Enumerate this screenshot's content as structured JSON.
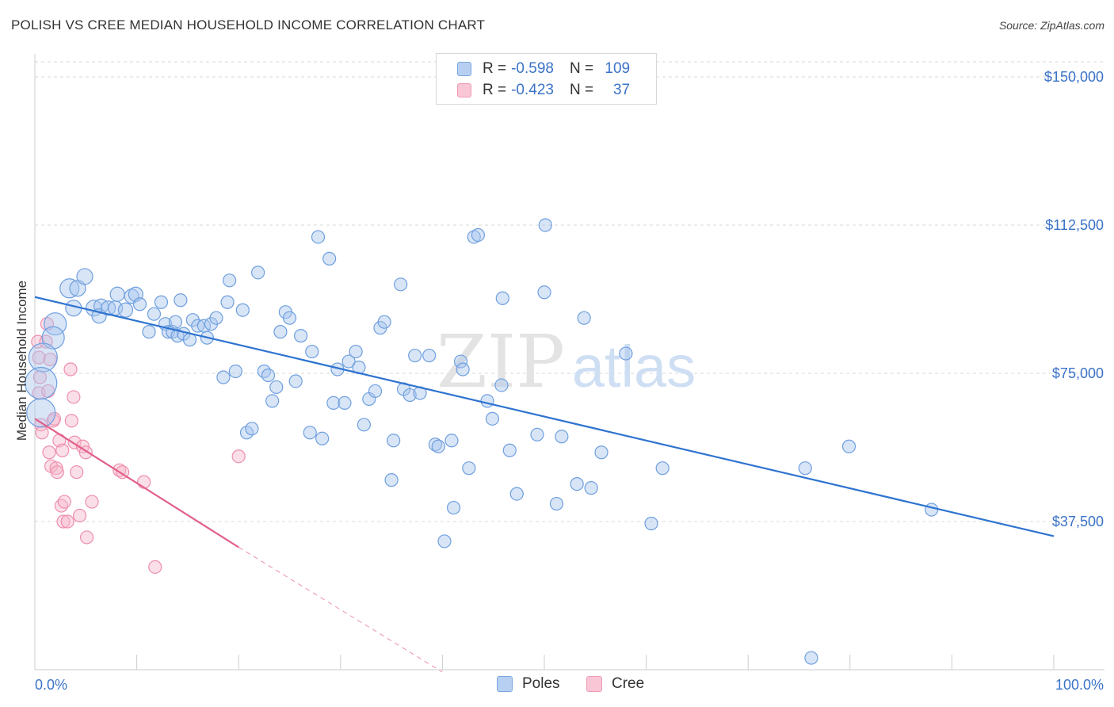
{
  "title": "POLISH VS CREE MEDIAN HOUSEHOLD INCOME CORRELATION CHART",
  "source": "Source: ZipAtlas.com",
  "watermark": {
    "zip": "ZIP",
    "atlas": "atlas"
  },
  "legend_top": [
    {
      "r_label": "R =",
      "r_value": "-0.598",
      "n_label": "N =",
      "n_value": "109"
    },
    {
      "r_label": "R =",
      "r_value": "-0.423",
      "n_label": "N =",
      "n_value": "37"
    }
  ],
  "legend_bottom": [
    "Poles",
    "Cree"
  ],
  "colors": {
    "blue_fill": "#a9c6ee",
    "blue_stroke": "#6e9fdf",
    "blue_line": "#2f74d0",
    "pink_fill": "#f6b8cb",
    "pink_stroke": "#ee8eac",
    "pink_line": "#e2608a",
    "axis_text": "#3b73c8",
    "grid": "#d9d9d9"
  },
  "chart_data": {
    "type": "scatter",
    "title": "POLISH VS CREE MEDIAN HOUSEHOLD INCOME CORRELATION CHART",
    "xlabel": "",
    "ylabel": "Median Household Income",
    "xlim": [
      0,
      100
    ],
    "ylim": [
      0,
      155000
    ],
    "x_tick_labels": [
      "0.0%",
      "100.0%"
    ],
    "y_ticks": [
      37500,
      75000,
      112500,
      150000
    ],
    "y_tick_labels": [
      "$37,500",
      "$75,000",
      "$112,500",
      "$150,000"
    ],
    "series": [
      {
        "name": "Poles",
        "color": "#6e9fdf",
        "trend": {
          "x": [
            0,
            100
          ],
          "y": [
            94300,
            33800
          ]
        },
        "points": [
          {
            "x": 2.0,
            "y": 87500,
            "s": 14
          },
          {
            "x": 1.8,
            "y": 84000,
            "s": 14
          },
          {
            "x": 0.8,
            "y": 79000,
            "s": 18
          },
          {
            "x": 0.6,
            "y": 72500,
            "s": 20
          },
          {
            "x": 0.6,
            "y": 65000,
            "s": 18
          },
          {
            "x": 3.4,
            "y": 96500,
            "s": 12
          },
          {
            "x": 4.2,
            "y": 96500,
            "s": 10
          },
          {
            "x": 4.9,
            "y": 99500,
            "s": 10
          },
          {
            "x": 3.8,
            "y": 91500,
            "s": 10
          },
          {
            "x": 5.8,
            "y": 91500,
            "s": 10
          },
          {
            "x": 6.5,
            "y": 92000,
            "s": 9
          },
          {
            "x": 6.3,
            "y": 89500,
            "s": 9
          },
          {
            "x": 7.2,
            "y": 91500,
            "s": 9
          },
          {
            "x": 7.9,
            "y": 91500,
            "s": 9
          },
          {
            "x": 8.1,
            "y": 95000,
            "s": 9
          },
          {
            "x": 8.9,
            "y": 91000,
            "s": 9
          },
          {
            "x": 9.5,
            "y": 94500,
            "s": 9
          },
          {
            "x": 9.9,
            "y": 95000,
            "s": 9
          },
          {
            "x": 10.3,
            "y": 92500,
            "s": 8
          },
          {
            "x": 11.2,
            "y": 85500,
            "s": 8
          },
          {
            "x": 11.7,
            "y": 90000,
            "s": 8
          },
          {
            "x": 12.4,
            "y": 93000,
            "s": 8
          },
          {
            "x": 12.8,
            "y": 87500,
            "s": 8
          },
          {
            "x": 13.1,
            "y": 85500,
            "s": 8
          },
          {
            "x": 13.5,
            "y": 85500,
            "s": 8
          },
          {
            "x": 13.8,
            "y": 88000,
            "s": 8
          },
          {
            "x": 14.0,
            "y": 84500,
            "s": 8
          },
          {
            "x": 14.3,
            "y": 93500,
            "s": 8
          },
          {
            "x": 14.6,
            "y": 85000,
            "s": 8
          },
          {
            "x": 15.2,
            "y": 83500,
            "s": 8
          },
          {
            "x": 15.5,
            "y": 88500,
            "s": 8
          },
          {
            "x": 16.0,
            "y": 87000,
            "s": 8
          },
          {
            "x": 16.6,
            "y": 87000,
            "s": 8
          },
          {
            "x": 16.9,
            "y": 84000,
            "s": 8
          },
          {
            "x": 17.3,
            "y": 87500,
            "s": 8
          },
          {
            "x": 17.8,
            "y": 89000,
            "s": 8
          },
          {
            "x": 18.5,
            "y": 74000,
            "s": 8
          },
          {
            "x": 18.9,
            "y": 93000,
            "s": 8
          },
          {
            "x": 19.1,
            "y": 98500,
            "s": 8
          },
          {
            "x": 19.7,
            "y": 75500,
            "s": 8
          },
          {
            "x": 20.4,
            "y": 91000,
            "s": 8
          },
          {
            "x": 20.8,
            "y": 60000,
            "s": 8
          },
          {
            "x": 21.3,
            "y": 61000,
            "s": 8
          },
          {
            "x": 21.9,
            "y": 100500,
            "s": 8
          },
          {
            "x": 22.5,
            "y": 75500,
            "s": 8
          },
          {
            "x": 22.9,
            "y": 74500,
            "s": 8
          },
          {
            "x": 23.3,
            "y": 68000,
            "s": 8
          },
          {
            "x": 23.7,
            "y": 71500,
            "s": 8
          },
          {
            "x": 24.1,
            "y": 85500,
            "s": 8
          },
          {
            "x": 24.6,
            "y": 90500,
            "s": 8
          },
          {
            "x": 25.0,
            "y": 89000,
            "s": 8
          },
          {
            "x": 25.6,
            "y": 73000,
            "s": 8
          },
          {
            "x": 26.1,
            "y": 84500,
            "s": 8
          },
          {
            "x": 27.0,
            "y": 60000,
            "s": 8
          },
          {
            "x": 27.2,
            "y": 80500,
            "s": 8
          },
          {
            "x": 27.8,
            "y": 109500,
            "s": 8
          },
          {
            "x": 28.2,
            "y": 58500,
            "s": 8
          },
          {
            "x": 28.9,
            "y": 104000,
            "s": 8
          },
          {
            "x": 29.3,
            "y": 67500,
            "s": 8
          },
          {
            "x": 29.7,
            "y": 76000,
            "s": 8
          },
          {
            "x": 30.4,
            "y": 67500,
            "s": 8
          },
          {
            "x": 30.8,
            "y": 78000,
            "s": 8
          },
          {
            "x": 31.5,
            "y": 80500,
            "s": 8
          },
          {
            "x": 31.8,
            "y": 76500,
            "s": 8
          },
          {
            "x": 32.3,
            "y": 62000,
            "s": 8
          },
          {
            "x": 32.8,
            "y": 68500,
            "s": 8
          },
          {
            "x": 33.4,
            "y": 70500,
            "s": 8
          },
          {
            "x": 33.9,
            "y": 86500,
            "s": 8
          },
          {
            "x": 34.3,
            "y": 88000,
            "s": 8
          },
          {
            "x": 35.2,
            "y": 58000,
            "s": 8
          },
          {
            "x": 35.0,
            "y": 48000,
            "s": 8
          },
          {
            "x": 35.9,
            "y": 97500,
            "s": 8
          },
          {
            "x": 36.2,
            "y": 71000,
            "s": 8
          },
          {
            "x": 36.8,
            "y": 69500,
            "s": 8
          },
          {
            "x": 37.3,
            "y": 79500,
            "s": 8
          },
          {
            "x": 37.8,
            "y": 70000,
            "s": 8
          },
          {
            "x": 38.7,
            "y": 79500,
            "s": 8
          },
          {
            "x": 39.3,
            "y": 57000,
            "s": 8
          },
          {
            "x": 39.6,
            "y": 56500,
            "s": 8
          },
          {
            "x": 40.2,
            "y": 32500,
            "s": 8
          },
          {
            "x": 40.9,
            "y": 58000,
            "s": 8
          },
          {
            "x": 41.1,
            "y": 41000,
            "s": 8
          },
          {
            "x": 41.8,
            "y": 78000,
            "s": 8
          },
          {
            "x": 42.0,
            "y": 76000,
            "s": 8
          },
          {
            "x": 42.6,
            "y": 51000,
            "s": 8
          },
          {
            "x": 43.1,
            "y": 109500,
            "s": 8
          },
          {
            "x": 43.5,
            "y": 110000,
            "s": 8
          },
          {
            "x": 44.4,
            "y": 68000,
            "s": 8
          },
          {
            "x": 44.9,
            "y": 63500,
            "s": 8
          },
          {
            "x": 45.9,
            "y": 94000,
            "s": 8
          },
          {
            "x": 45.8,
            "y": 72000,
            "s": 8
          },
          {
            "x": 46.6,
            "y": 55500,
            "s": 8
          },
          {
            "x": 47.3,
            "y": 44500,
            "s": 8
          },
          {
            "x": 49.3,
            "y": 59500,
            "s": 8
          },
          {
            "x": 50.1,
            "y": 112500,
            "s": 8
          },
          {
            "x": 50.0,
            "y": 95500,
            "s": 8
          },
          {
            "x": 51.2,
            "y": 42000,
            "s": 8
          },
          {
            "x": 51.7,
            "y": 59000,
            "s": 8
          },
          {
            "x": 53.2,
            "y": 47000,
            "s": 8
          },
          {
            "x": 53.9,
            "y": 89000,
            "s": 8
          },
          {
            "x": 54.6,
            "y": 46000,
            "s": 8
          },
          {
            "x": 55.6,
            "y": 55000,
            "s": 8
          },
          {
            "x": 58.0,
            "y": 80000,
            "s": 8
          },
          {
            "x": 60.5,
            "y": 37000,
            "s": 8
          },
          {
            "x": 61.6,
            "y": 51000,
            "s": 8
          },
          {
            "x": 75.6,
            "y": 51000,
            "s": 8
          },
          {
            "x": 79.9,
            "y": 56500,
            "s": 8
          },
          {
            "x": 88.0,
            "y": 40500,
            "s": 8
          },
          {
            "x": 76.2,
            "y": 3000,
            "s": 8
          }
        ]
      },
      {
        "name": "Cree",
        "color": "#ee8eac",
        "trend": {
          "x": [
            0,
            20.0
          ],
          "y": [
            63500,
            31000
          ]
        },
        "trend_dashed": {
          "x": [
            20.0,
            40.0
          ],
          "y": [
            31000,
            -1500
          ]
        },
        "points": [
          {
            "x": 0.3,
            "y": 83000,
            "s": 8
          },
          {
            "x": 0.4,
            "y": 79000,
            "s": 8
          },
          {
            "x": 0.5,
            "y": 74000,
            "s": 8
          },
          {
            "x": 0.4,
            "y": 70000,
            "s": 8
          },
          {
            "x": 0.6,
            "y": 62000,
            "s": 8
          },
          {
            "x": 0.7,
            "y": 60000,
            "s": 8
          },
          {
            "x": 1.2,
            "y": 87500,
            "s": 8
          },
          {
            "x": 1.1,
            "y": 83000,
            "s": 8
          },
          {
            "x": 1.5,
            "y": 78500,
            "s": 8
          },
          {
            "x": 1.3,
            "y": 70500,
            "s": 8
          },
          {
            "x": 1.4,
            "y": 55000,
            "s": 8
          },
          {
            "x": 1.6,
            "y": 51500,
            "s": 8
          },
          {
            "x": 1.8,
            "y": 63000,
            "s": 8
          },
          {
            "x": 1.9,
            "y": 63500,
            "s": 8
          },
          {
            "x": 2.1,
            "y": 51000,
            "s": 8
          },
          {
            "x": 2.2,
            "y": 50000,
            "s": 8
          },
          {
            "x": 2.4,
            "y": 58000,
            "s": 8
          },
          {
            "x": 2.6,
            "y": 41500,
            "s": 8
          },
          {
            "x": 2.8,
            "y": 37500,
            "s": 8
          },
          {
            "x": 2.7,
            "y": 55500,
            "s": 8
          },
          {
            "x": 2.9,
            "y": 42500,
            "s": 8
          },
          {
            "x": 3.2,
            "y": 37500,
            "s": 8
          },
          {
            "x": 3.5,
            "y": 76000,
            "s": 8
          },
          {
            "x": 3.6,
            "y": 63000,
            "s": 8
          },
          {
            "x": 3.8,
            "y": 69000,
            "s": 8
          },
          {
            "x": 3.9,
            "y": 57500,
            "s": 8
          },
          {
            "x": 4.1,
            "y": 50000,
            "s": 8
          },
          {
            "x": 4.4,
            "y": 39000,
            "s": 8
          },
          {
            "x": 4.7,
            "y": 56500,
            "s": 8
          },
          {
            "x": 5.0,
            "y": 55000,
            "s": 8
          },
          {
            "x": 5.1,
            "y": 33500,
            "s": 8
          },
          {
            "x": 5.6,
            "y": 42500,
            "s": 8
          },
          {
            "x": 8.3,
            "y": 50500,
            "s": 8
          },
          {
            "x": 8.6,
            "y": 50000,
            "s": 8
          },
          {
            "x": 10.7,
            "y": 47500,
            "s": 8
          },
          {
            "x": 11.8,
            "y": 26000,
            "s": 8
          },
          {
            "x": 20.0,
            "y": 54000,
            "s": 8
          }
        ]
      }
    ]
  }
}
